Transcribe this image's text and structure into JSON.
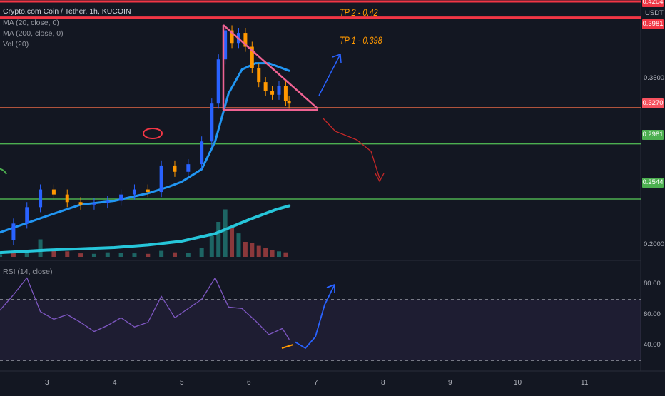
{
  "header": {
    "title": "Crypto.com Coin / Tether, 1h, KUCOIN",
    "ma20_label": "MA (20, close, 0)",
    "ma200_label": "MA (200, close, 0)",
    "vol_label": "Vol (20)",
    "rsi_label": "RSI (14, close)",
    "currency": "USDT"
  },
  "annotations": {
    "tp2": "TP 2 -  0.42",
    "tp1": "TP 1 - 0.398"
  },
  "price_badges": [
    {
      "label": "0.4204",
      "color": "#f23645"
    },
    {
      "label": "0.3981",
      "color": "#f23645"
    },
    {
      "label": "0.3270",
      "color": "#f7525f"
    },
    {
      "label": "0.2981",
      "color": "#4caf50"
    },
    {
      "label": "0.2544",
      "color": "#4caf50"
    }
  ],
  "colors": {
    "background": "#131722",
    "up_candle": "#2962ff",
    "down_candle": "#ff9800",
    "ma20": "#2196f3",
    "ma200": "#26c6da",
    "resistance": "#f23645",
    "support": "#4caf50",
    "triangle": "#f06292",
    "rsi_line": "#7e57c2"
  },
  "chart_data": [
    {
      "type": "line",
      "title": "Crypto.com Coin / Tether, 1h, KUCOIN",
      "x_ticks": [
        "3",
        "4",
        "5",
        "6",
        "7",
        "8",
        "9",
        "10",
        "11"
      ],
      "y_ticks": [
        "0.3500",
        "0.2000"
      ],
      "ylim": [
        0.19,
        0.43
      ],
      "horizontal_levels": [
        {
          "value": 0.4204,
          "label": "TP 2 -  0.42"
        },
        {
          "value": 0.3981,
          "label": "TP 1 - 0.398"
        },
        {
          "value": 0.327
        },
        {
          "value": 0.2981
        },
        {
          "value": 0.2544
        }
      ],
      "series": [
        {
          "name": "MA (20, close, 0)",
          "x": [
            2.3,
            3.0,
            3.5,
            4.0,
            4.5,
            4.8,
            5.0,
            5.3,
            5.5,
            5.7,
            5.9,
            6.1,
            6.3,
            6.6
          ],
          "values": [
            0.228,
            0.241,
            0.25,
            0.253,
            0.259,
            0.264,
            0.268,
            0.278,
            0.3,
            0.338,
            0.357,
            0.362,
            0.362,
            0.356
          ]
        },
        {
          "name": "MA (200, close, 0)",
          "x": [
            2.3,
            3.0,
            3.5,
            4.0,
            4.5,
            5.0,
            5.5,
            6.0,
            6.4,
            6.6
          ],
          "values": [
            0.212,
            0.214,
            0.215,
            0.216,
            0.218,
            0.221,
            0.227,
            0.238,
            0.246,
            0.249
          ]
        },
        {
          "name": "Close",
          "x": [
            2.3,
            2.5,
            2.7,
            2.9,
            3.1,
            3.3,
            3.5,
            3.7,
            3.9,
            4.1,
            4.3,
            4.5,
            4.7,
            4.9,
            5.1,
            5.3,
            5.45,
            5.55,
            5.65,
            5.75,
            5.85,
            5.95,
            6.05,
            6.15,
            6.25,
            6.35,
            6.45,
            6.55,
            6.6
          ],
          "values": [
            0.222,
            0.235,
            0.248,
            0.262,
            0.258,
            0.252,
            0.25,
            0.251,
            0.253,
            0.258,
            0.262,
            0.26,
            0.281,
            0.276,
            0.282,
            0.3,
            0.33,
            0.365,
            0.388,
            0.378,
            0.386,
            0.375,
            0.358,
            0.347,
            0.34,
            0.337,
            0.344,
            0.332,
            0.33
          ]
        }
      ]
    },
    {
      "type": "line",
      "title": "RSI (14, close)",
      "y_ticks": [
        "80.00",
        "60.00",
        "40.00"
      ],
      "ylim": [
        25,
        92
      ],
      "series": [
        {
          "name": "RSI (14, close)",
          "x": [
            2.3,
            2.5,
            2.7,
            2.9,
            3.1,
            3.3,
            3.5,
            3.7,
            3.9,
            4.1,
            4.3,
            4.5,
            4.7,
            4.9,
            5.1,
            5.3,
            5.5,
            5.7,
            5.9,
            6.1,
            6.3,
            6.5,
            6.6
          ],
          "values": [
            63,
            73,
            84,
            62,
            57,
            60,
            55,
            49,
            53,
            58,
            52,
            55,
            72,
            58,
            64,
            70,
            84,
            65,
            64,
            56,
            47,
            51,
            44
          ]
        }
      ]
    },
    {
      "type": "bar",
      "title": "Vol (20)",
      "x": [
        2.3,
        2.5,
        2.7,
        2.9,
        3.1,
        3.3,
        3.5,
        3.7,
        3.9,
        4.1,
        4.3,
        4.5,
        4.7,
        4.9,
        5.1,
        5.3,
        5.45,
        5.55,
        5.65,
        5.75,
        5.85,
        5.95,
        6.05,
        6.15,
        6.25,
        6.35,
        6.45,
        6.55
      ],
      "values": [
        5,
        8,
        12,
        35,
        14,
        11,
        7,
        6,
        9,
        8,
        7,
        6,
        12,
        9,
        8,
        18,
        42,
        70,
        95,
        58,
        47,
        30,
        28,
        22,
        18,
        14,
        11,
        9
      ],
      "colors": [
        "up",
        "down",
        "up",
        "up",
        "down",
        "down",
        "down",
        "up",
        "up",
        "up",
        "up",
        "down",
        "up",
        "down",
        "up",
        "up",
        "up",
        "up",
        "up",
        "down",
        "up",
        "down",
        "down",
        "down",
        "down",
        "down",
        "up",
        "down"
      ]
    }
  ]
}
